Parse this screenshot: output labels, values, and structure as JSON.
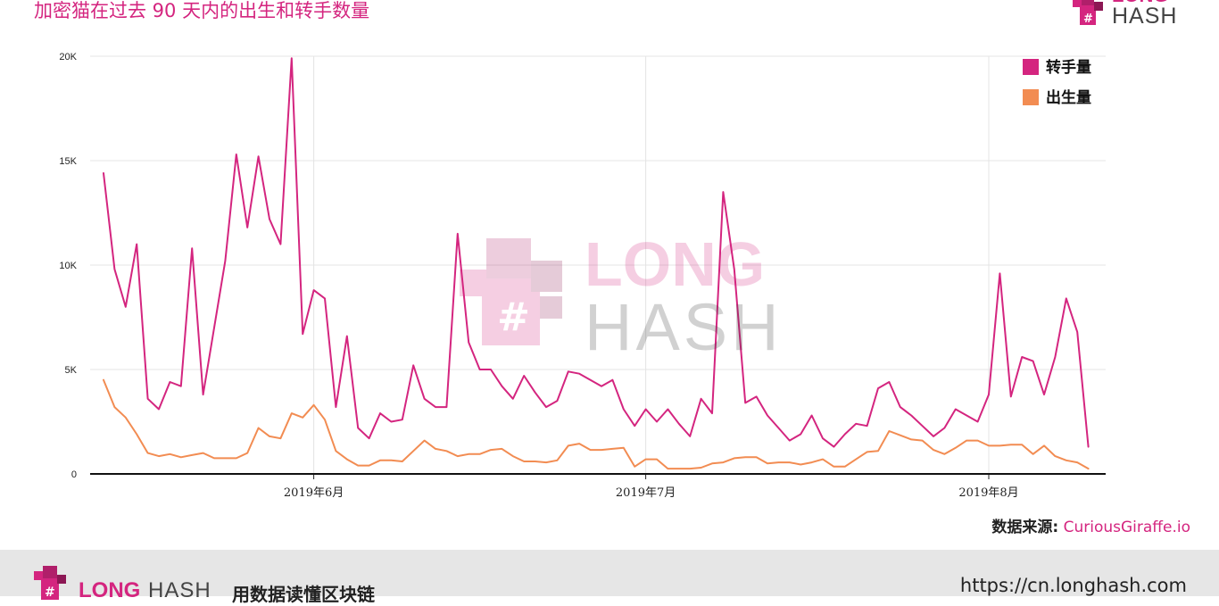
{
  "header": {
    "title": "加密猫在过去 90 天内的出生和转手数量",
    "logo_top": "LONG",
    "logo_bottom": "HASH"
  },
  "source": {
    "label": "数据来源:",
    "link": "CuriousGiraffe.io"
  },
  "footer": {
    "logo_long": "LONG",
    "logo_hash": "HASH",
    "tagline": "用数据读懂区块链",
    "url": "https://cn.longhash.com"
  },
  "watermark": {
    "long": "LONG",
    "hash": "HASH"
  },
  "colors": {
    "transfers": "#d4257f",
    "births": "#f28c52",
    "accent": "#d4257f"
  },
  "chart_data": {
    "type": "line",
    "title": "加密猫在过去 90 天内的出生和转手数量",
    "xlabel": "",
    "ylabel": "",
    "ylim": [
      0,
      20000
    ],
    "yticks": [
      {
        "value": 0,
        "label": "0"
      },
      {
        "value": 5000,
        "label": "5K"
      },
      {
        "value": 10000,
        "label": "10K"
      },
      {
        "value": 15000,
        "label": "15K"
      },
      {
        "value": 20000,
        "label": "20K"
      }
    ],
    "xticks": [
      {
        "label": "2019年6月",
        "date": "2019-06-01"
      },
      {
        "label": "2019年7月",
        "date": "2019-07-01"
      },
      {
        "label": "2019年8月",
        "date": "2019-08-01"
      }
    ],
    "x_start_date": "2019-05-13",
    "grid": true,
    "legend_position": "top-right",
    "series": [
      {
        "name": "转手量",
        "values": [
          14400,
          9800,
          8000,
          11000,
          3600,
          3100,
          4400,
          4200,
          10800,
          3800,
          7000,
          10200,
          15300,
          11800,
          15200,
          12200,
          11000,
          19900,
          6700,
          8800,
          8400,
          3200,
          6600,
          2200,
          1700,
          2900,
          2500,
          2600,
          5200,
          3600,
          3200,
          3200,
          11500,
          6300,
          5000,
          5000,
          4200,
          3600,
          4700,
          3900,
          3200,
          3500,
          4900,
          4800,
          4500,
          4200,
          4500,
          3100,
          2300,
          3100,
          2500,
          3100,
          2400,
          1800,
          3600,
          2900,
          13500,
          9800,
          3400,
          3700,
          2800,
          2200,
          1600,
          1900,
          2800,
          1700,
          1300,
          1900,
          2400,
          2300,
          4100,
          4400,
          3200,
          2800,
          2300,
          1800,
          2200,
          3100,
          2800,
          2500,
          3800,
          9600,
          3700,
          5600,
          5400,
          3800,
          5600,
          8400,
          6800,
          1300
        ],
        "color": "#d4257f"
      },
      {
        "name": "出生量",
        "values": [
          4500,
          3200,
          2700,
          1900,
          1000,
          850,
          950,
          800,
          900,
          1000,
          750,
          750,
          750,
          1000,
          2200,
          1800,
          1700,
          2900,
          2700,
          3300,
          2600,
          1100,
          700,
          400,
          400,
          650,
          650,
          600,
          1100,
          1600,
          1200,
          1100,
          850,
          950,
          950,
          1150,
          1200,
          850,
          600,
          600,
          550,
          650,
          1350,
          1450,
          1150,
          1150,
          1200,
          1250,
          350,
          700,
          700,
          250,
          250,
          250,
          300,
          500,
          550,
          750,
          800,
          800,
          500,
          550,
          550,
          450,
          550,
          700,
          350,
          350,
          700,
          1050,
          1100,
          2050,
          1850,
          1650,
          1600,
          1150,
          950,
          1250,
          1600,
          1600,
          1350,
          1350,
          1400,
          1400,
          950,
          1350,
          850,
          650,
          550,
          250
        ],
        "color": "#f28c52"
      }
    ]
  }
}
